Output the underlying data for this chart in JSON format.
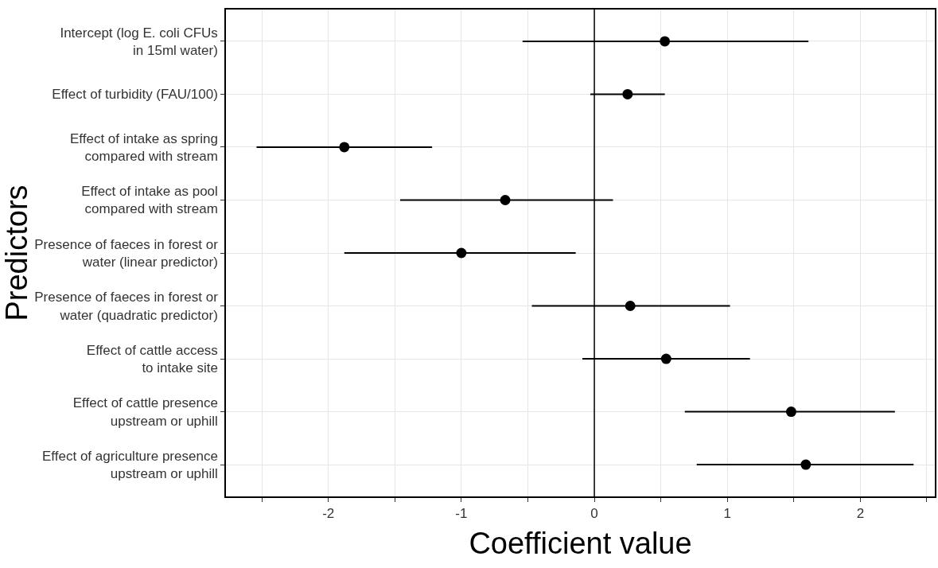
{
  "chart_data": {
    "type": "scatter",
    "xlabel": "Coefficient value",
    "ylabel": "Predictors",
    "orientation": "horizontal",
    "categories": [
      "Intercept (log E. coli CFUs\nin 15ml water)",
      "Effect of turbidity (FAU/100)",
      "Effect of intake as spring\ncompared with stream",
      "Effect of intake as pool\ncompared with stream",
      "Presence of faeces in forest or\nwater (linear predictor)",
      "Presence of faeces in forest or\nwater (quadratic predictor)",
      "Effect of cattle access\nto intake site",
      "Effect of cattle presence\nupstream or uphill",
      "Effect of agriculture presence\nupstream or uphill"
    ],
    "series": [
      {
        "color": "#000000",
        "values": [
          0.53,
          0.25,
          -1.88,
          -0.67,
          -1.0,
          0.27,
          0.54,
          1.48,
          1.59
        ],
        "errors": [
          [
            -0.54,
            1.61
          ],
          [
            -0.03,
            0.53
          ],
          [
            -2.54,
            -1.22
          ],
          [
            -1.46,
            0.14
          ],
          [
            -1.88,
            -0.14
          ],
          [
            -0.47,
            1.02
          ],
          [
            -0.09,
            1.17
          ],
          [
            0.68,
            2.26
          ],
          [
            0.77,
            2.4
          ]
        ]
      }
    ],
    "xlim": [
      -2.77,
      2.56
    ],
    "xticks": [
      {
        "value": -2.5,
        "label": null
      },
      -2,
      {
        "value": -1.5,
        "label": null
      },
      -1,
      {
        "value": -0.5,
        "label": null
      },
      0,
      {
        "value": 0.5,
        "label": null
      },
      1,
      {
        "value": 1.5,
        "label": null
      },
      2,
      {
        "value": 2.5,
        "label": null
      }
    ],
    "ref_lines": [
      {
        "axis": "x",
        "value": 0,
        "color": "#000000"
      }
    ],
    "grid": true,
    "marker": "circle"
  }
}
